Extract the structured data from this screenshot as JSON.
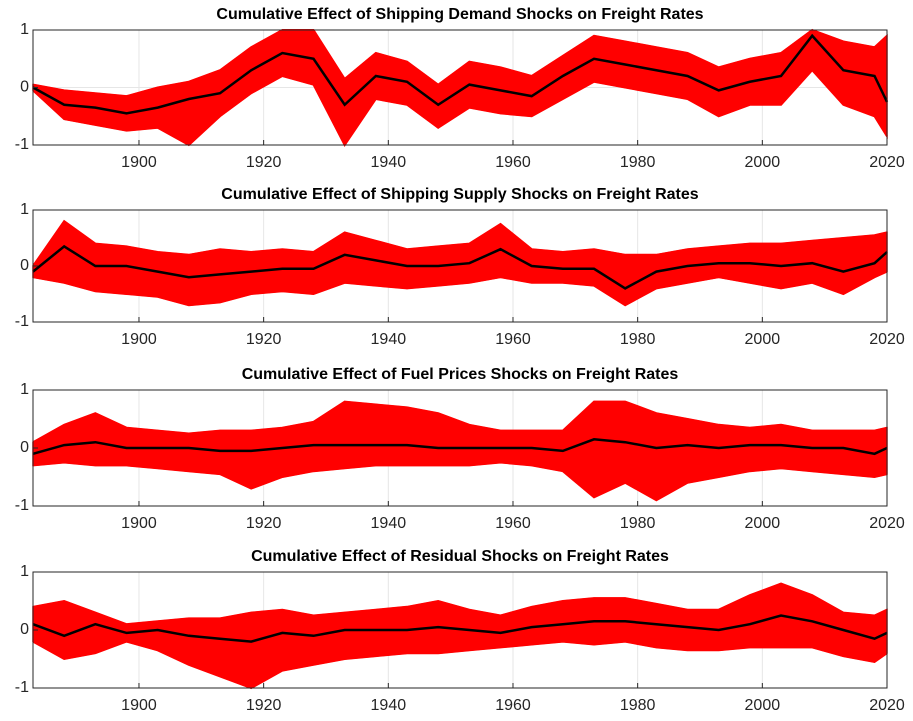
{
  "chart_data": [
    {
      "type": "band",
      "title": "Cumulative Effect of Shipping Demand Shocks on Freight Rates",
      "x": [
        1883,
        1888,
        1893,
        1898,
        1903,
        1908,
        1913,
        1918,
        1923,
        1928,
        1933,
        1938,
        1943,
        1948,
        1953,
        1958,
        1963,
        1968,
        1973,
        1978,
        1983,
        1988,
        1993,
        1998,
        2003,
        2008,
        2013,
        2018,
        2020
      ],
      "series": [
        {
          "color": "#ff0000",
          "values": [
            0.05,
            -0.05,
            -0.1,
            -0.15,
            0,
            0.1,
            0.3,
            0.7,
            1,
            1,
            0.15,
            0.6,
            0.45,
            0.05,
            0.45,
            0.35,
            0.2,
            0.55,
            0.9,
            0.8,
            0.7,
            0.6,
            0.35,
            0.5,
            0.6,
            1,
            0.8,
            0.7,
            0.9
          ]
        },
        {
          "color": "#ff0000",
          "values": [
            -0.05,
            -0.55,
            -0.65,
            -0.75,
            -0.7,
            -1,
            -0.5,
            -0.1,
            0.2,
            0.05,
            -1,
            -0.2,
            -0.3,
            -0.7,
            -0.35,
            -0.45,
            -0.5,
            -0.2,
            0.1,
            0,
            -0.1,
            -0.2,
            -0.5,
            -0.3,
            -0.3,
            0.3,
            -0.3,
            -0.5,
            -0.85
          ]
        },
        {
          "color": "#000000",
          "values": [
            0,
            -0.3,
            -0.35,
            -0.45,
            -0.35,
            -0.2,
            -0.1,
            0.3,
            0.6,
            0.5,
            -0.3,
            0.2,
            0.1,
            -0.3,
            0.05,
            -0.05,
            -0.15,
            0.2,
            0.5,
            0.4,
            0.3,
            0.2,
            -0.05,
            0.1,
            0.2,
            0.9,
            0.3,
            0.2,
            -0.25
          ]
        }
      ],
      "xlim": [
        1883,
        2020
      ],
      "xticks": [
        1900,
        1920,
        1940,
        1960,
        1980,
        2000,
        2020
      ],
      "ylim": [
        -1,
        1
      ],
      "yticks": [
        -1,
        0,
        1
      ],
      "grid": true
    },
    {
      "type": "band",
      "title": "Cumulative Effect of Shipping Supply Shocks on Freight Rates",
      "x": [
        1883,
        1888,
        1893,
        1898,
        1903,
        1908,
        1913,
        1918,
        1923,
        1928,
        1933,
        1938,
        1943,
        1948,
        1953,
        1958,
        1963,
        1968,
        1973,
        1978,
        1983,
        1988,
        1993,
        1998,
        2003,
        2008,
        2013,
        2018,
        2020
      ],
      "series": [
        {
          "color": "#ff0000",
          "values": [
            0,
            0.8,
            0.4,
            0.35,
            0.25,
            0.2,
            0.3,
            0.25,
            0.3,
            0.25,
            0.6,
            0.45,
            0.3,
            0.35,
            0.4,
            0.75,
            0.3,
            0.25,
            0.3,
            0.2,
            0.2,
            0.3,
            0.35,
            0.4,
            0.4,
            0.45,
            0.5,
            0.55,
            0.6
          ]
        },
        {
          "color": "#ff0000",
          "values": [
            -0.2,
            -0.3,
            -0.45,
            -0.5,
            -0.55,
            -0.7,
            -0.65,
            -0.5,
            -0.45,
            -0.5,
            -0.3,
            -0.35,
            -0.4,
            -0.35,
            -0.3,
            -0.2,
            -0.3,
            -0.3,
            -0.35,
            -0.7,
            -0.4,
            -0.3,
            -0.2,
            -0.3,
            -0.4,
            -0.3,
            -0.5,
            -0.2,
            -0.1
          ]
        },
        {
          "color": "#000000",
          "values": [
            -0.1,
            0.35,
            0,
            0,
            -0.1,
            -0.2,
            -0.15,
            -0.1,
            -0.05,
            -0.05,
            0.2,
            0.1,
            0,
            0,
            0.05,
            0.3,
            0,
            -0.05,
            -0.05,
            -0.4,
            -0.1,
            0,
            0.05,
            0.05,
            0,
            0.05,
            -0.1,
            0.05,
            0.25
          ]
        }
      ],
      "xlim": [
        1883,
        2020
      ],
      "xticks": [
        1900,
        1920,
        1940,
        1960,
        1980,
        2000,
        2020
      ],
      "ylim": [
        -1,
        1
      ],
      "yticks": [
        -1,
        0,
        1
      ],
      "grid": true
    },
    {
      "type": "band",
      "title": "Cumulative Effect of Fuel Prices Shocks on Freight Rates",
      "x": [
        1883,
        1888,
        1893,
        1898,
        1903,
        1908,
        1913,
        1918,
        1923,
        1928,
        1933,
        1938,
        1943,
        1948,
        1953,
        1958,
        1963,
        1968,
        1973,
        1978,
        1983,
        1988,
        1993,
        1998,
        2003,
        2008,
        2013,
        2018,
        2020
      ],
      "series": [
        {
          "color": "#ff0000",
          "values": [
            0.1,
            0.4,
            0.6,
            0.35,
            0.3,
            0.25,
            0.3,
            0.3,
            0.35,
            0.45,
            0.8,
            0.75,
            0.7,
            0.6,
            0.4,
            0.3,
            0.3,
            0.3,
            0.8,
            0.8,
            0.6,
            0.5,
            0.4,
            0.35,
            0.4,
            0.3,
            0.3,
            0.3,
            0.35
          ]
        },
        {
          "color": "#ff0000",
          "values": [
            -0.3,
            -0.25,
            -0.3,
            -0.3,
            -0.35,
            -0.4,
            -0.45,
            -0.7,
            -0.5,
            -0.4,
            -0.35,
            -0.3,
            -0.3,
            -0.3,
            -0.3,
            -0.25,
            -0.3,
            -0.4,
            -0.85,
            -0.6,
            -0.9,
            -0.6,
            -0.5,
            -0.4,
            -0.35,
            -0.4,
            -0.45,
            -0.5,
            -0.45
          ]
        },
        {
          "color": "#000000",
          "values": [
            -0.1,
            0.05,
            0.1,
            0,
            0,
            0,
            -0.05,
            -0.05,
            0,
            0.05,
            0.05,
            0.05,
            0.05,
            0,
            0,
            0,
            0,
            -0.05,
            0.15,
            0.1,
            0,
            0.05,
            0,
            0.05,
            0.05,
            0,
            0,
            -0.1,
            0
          ]
        }
      ],
      "xlim": [
        1883,
        2020
      ],
      "xticks": [
        1900,
        1920,
        1940,
        1960,
        1980,
        2000,
        2020
      ],
      "ylim": [
        -1,
        1
      ],
      "yticks": [
        -1,
        0,
        1
      ],
      "grid": true
    },
    {
      "type": "band",
      "title": "Cumulative Effect of Residual Shocks on Freight Rates",
      "x": [
        1883,
        1888,
        1893,
        1898,
        1903,
        1908,
        1913,
        1918,
        1923,
        1928,
        1933,
        1938,
        1943,
        1948,
        1953,
        1958,
        1963,
        1968,
        1973,
        1978,
        1983,
        1988,
        1993,
        1998,
        2003,
        2008,
        2013,
        2018,
        2020
      ],
      "series": [
        {
          "color": "#ff0000",
          "values": [
            0.4,
            0.5,
            0.3,
            0.1,
            0.15,
            0.2,
            0.2,
            0.3,
            0.35,
            0.25,
            0.3,
            0.35,
            0.4,
            0.5,
            0.35,
            0.25,
            0.4,
            0.5,
            0.55,
            0.55,
            0.45,
            0.35,
            0.35,
            0.6,
            0.8,
            0.6,
            0.3,
            0.25,
            0.35
          ]
        },
        {
          "color": "#ff0000",
          "values": [
            -0.2,
            -0.5,
            -0.4,
            -0.2,
            -0.35,
            -0.6,
            -0.8,
            -1,
            -0.7,
            -0.6,
            -0.5,
            -0.45,
            -0.4,
            -0.4,
            -0.35,
            -0.3,
            -0.25,
            -0.2,
            -0.25,
            -0.2,
            -0.3,
            -0.35,
            -0.35,
            -0.3,
            -0.3,
            -0.3,
            -0.45,
            -0.55,
            -0.4
          ]
        },
        {
          "color": "#000000",
          "values": [
            0.1,
            -0.1,
            0.1,
            -0.05,
            0,
            -0.1,
            -0.15,
            -0.2,
            -0.05,
            -0.1,
            0,
            0,
            0,
            0.05,
            0,
            -0.05,
            0.05,
            0.1,
            0.15,
            0.15,
            0.1,
            0.05,
            0,
            0.1,
            0.25,
            0.15,
            0,
            -0.15,
            -0.05
          ]
        }
      ],
      "xlim": [
        1883,
        2020
      ],
      "xticks": [
        1900,
        1920,
        1940,
        1960,
        1980,
        2000,
        2020
      ],
      "ylim": [
        -1,
        1
      ],
      "yticks": [
        -1,
        0,
        1
      ],
      "grid": true
    }
  ]
}
